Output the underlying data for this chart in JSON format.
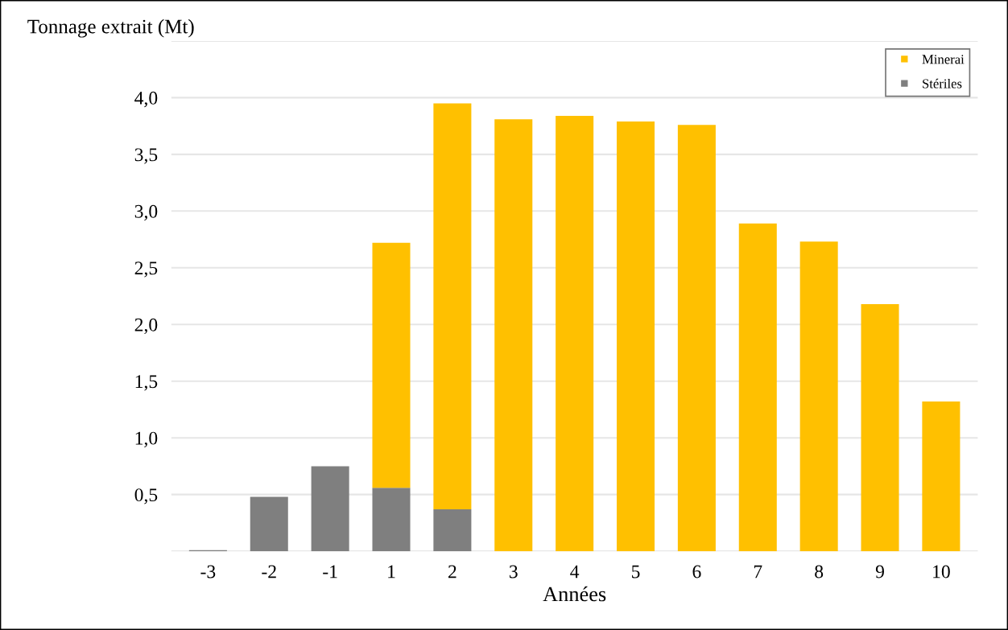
{
  "chart_data": {
    "type": "bar",
    "ylabel": "Tonnage extrait (Mt)",
    "xlabel": "Années",
    "stacked": true,
    "categories": [
      "-3",
      "-2",
      "-1",
      "1",
      "2",
      "3",
      "4",
      "5",
      "6",
      "7",
      "8",
      "9",
      "10"
    ],
    "series": [
      {
        "name": "Stériles",
        "color": "#7f7f7f",
        "values": [
          0.01,
          0.48,
          0.75,
          0.56,
          0.37,
          null,
          null,
          null,
          null,
          null,
          null,
          null,
          null
        ]
      },
      {
        "name": "Minerai",
        "color": "#ffc000",
        "values": [
          null,
          null,
          null,
          2.16,
          3.58,
          3.81,
          3.84,
          3.79,
          3.76,
          2.89,
          2.73,
          2.18,
          1.32
        ]
      }
    ],
    "ylim": [
      0,
      4.5
    ],
    "yticks": [
      {
        "value": 0,
        "label": null
      },
      {
        "value": 0.5,
        "label": "0,5"
      },
      {
        "value": 1.0,
        "label": "1,0"
      },
      {
        "value": 1.5,
        "label": "1,5"
      },
      {
        "value": 2.0,
        "label": "2,0"
      },
      {
        "value": 2.5,
        "label": "2,5"
      },
      {
        "value": 3.0,
        "label": "3,0"
      },
      {
        "value": 3.5,
        "label": "3,5"
      },
      {
        "value": 4.0,
        "label": "4,0"
      },
      {
        "value": 4.5,
        "label": null
      }
    ],
    "grid": "y",
    "legend": "top right"
  }
}
